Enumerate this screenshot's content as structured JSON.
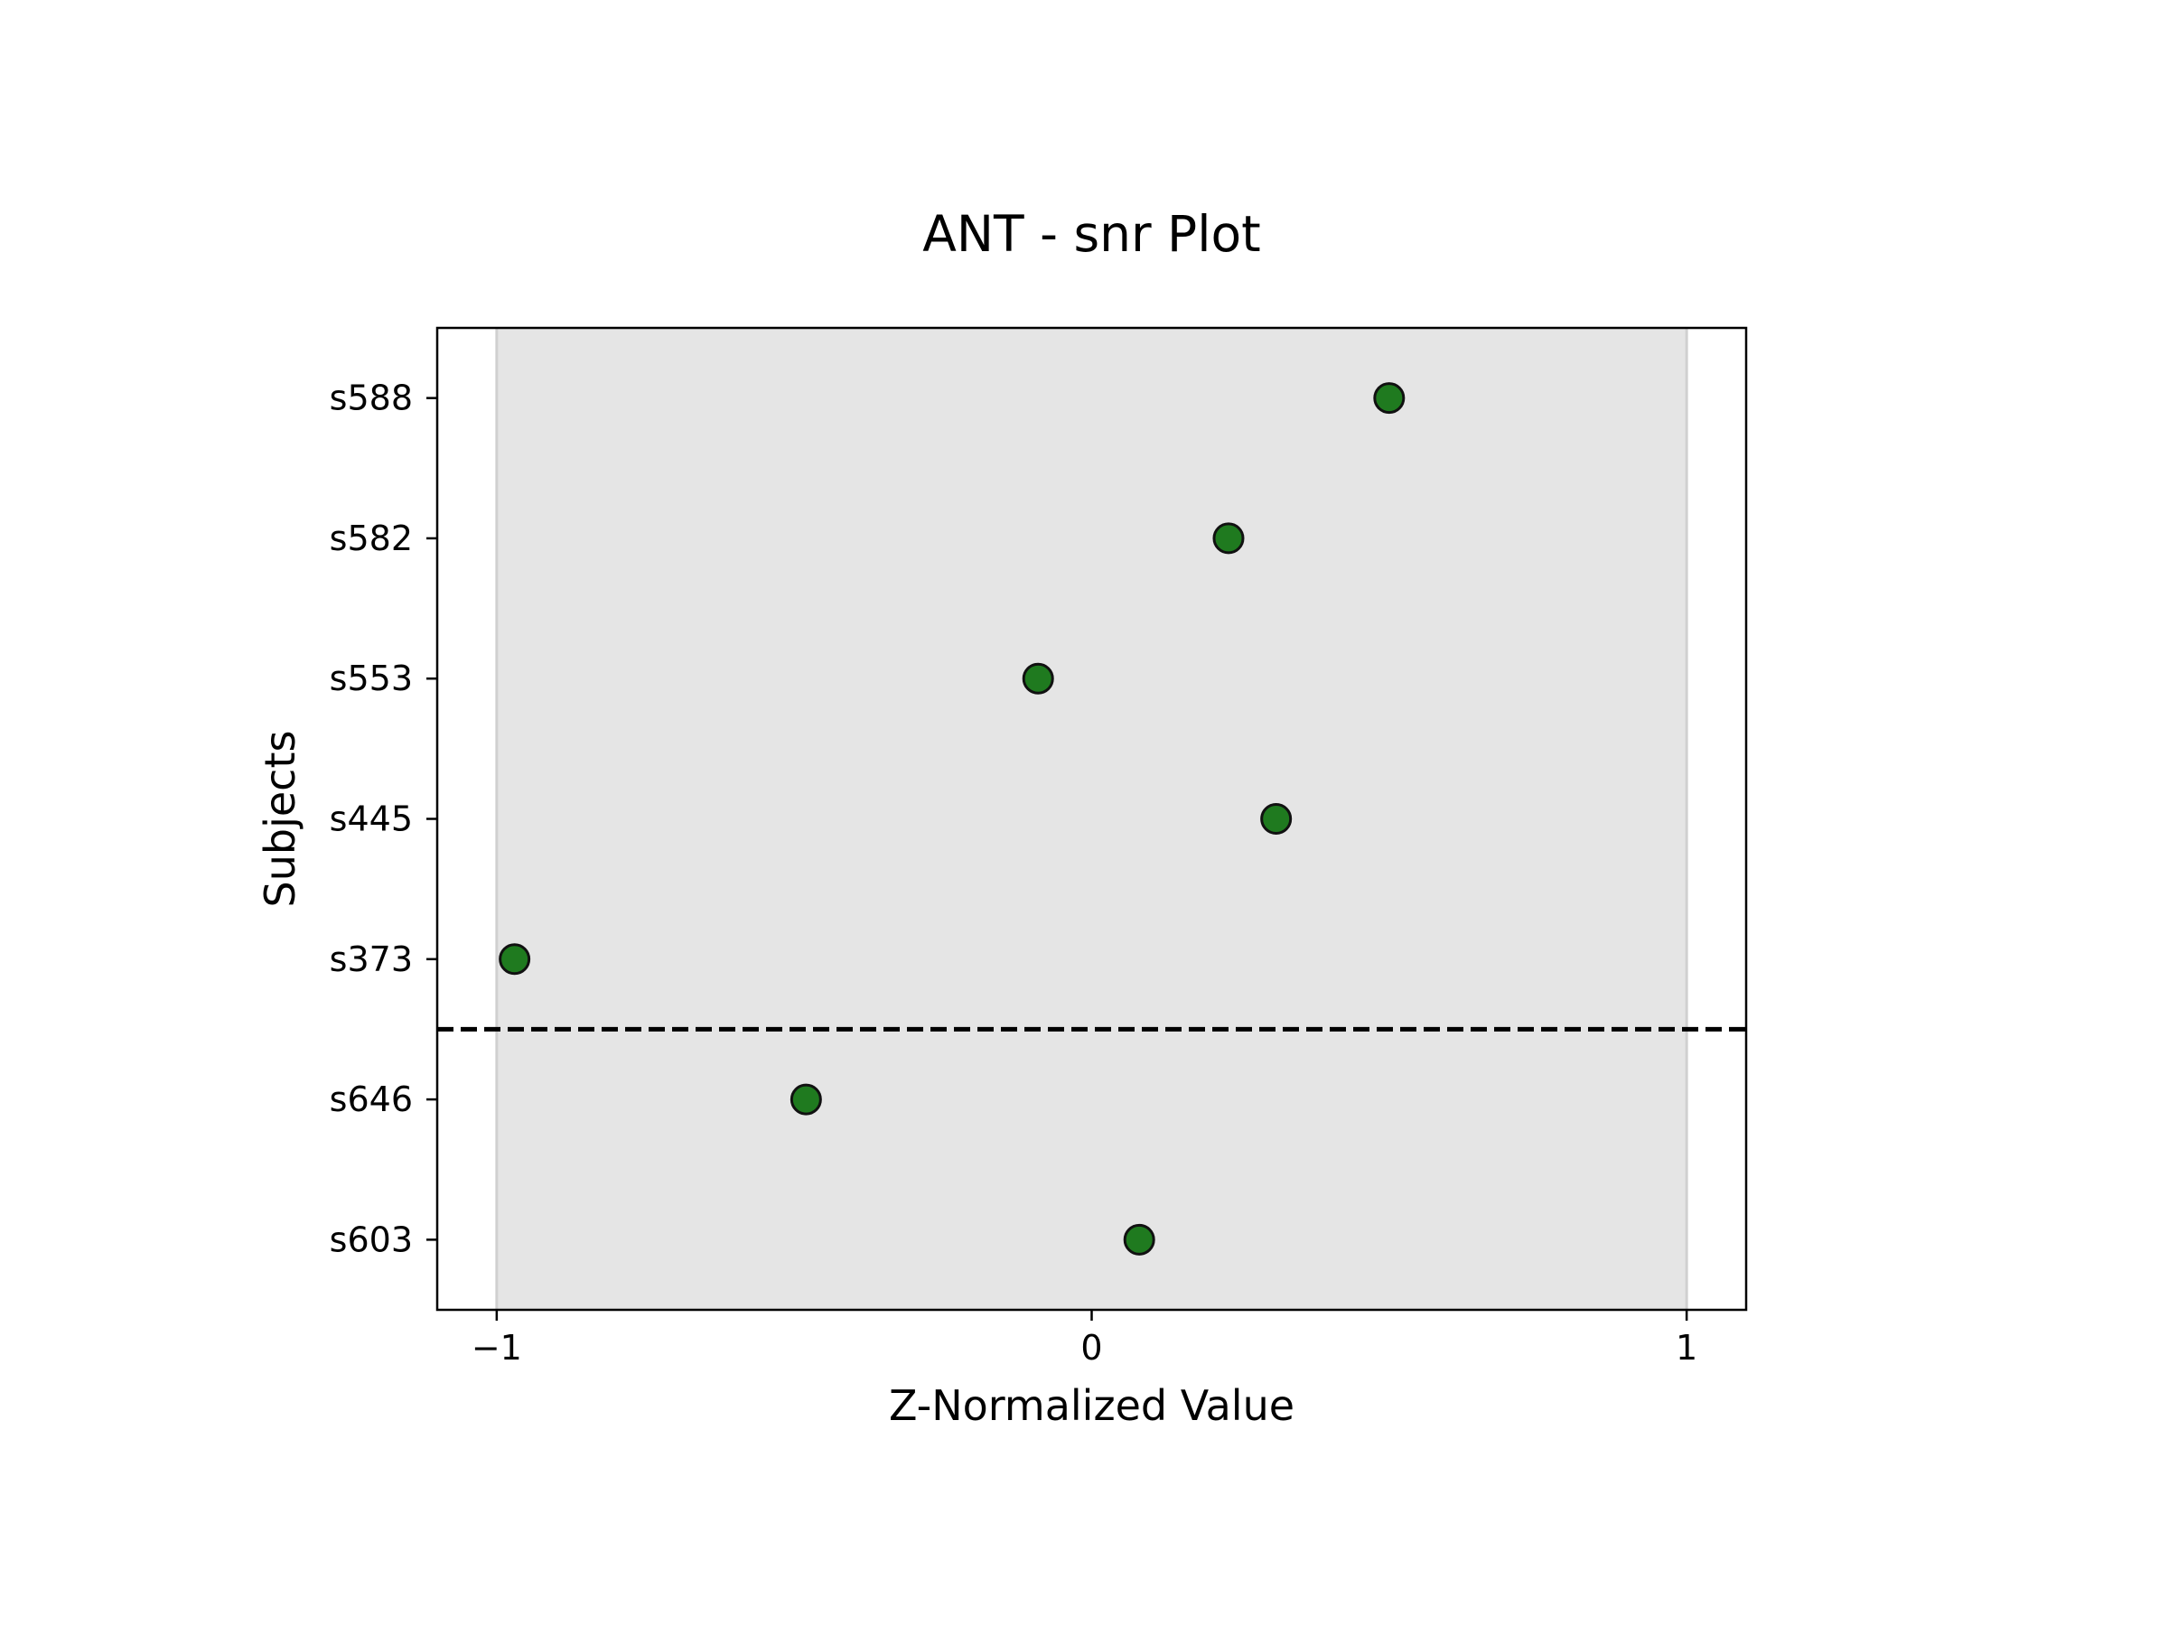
{
  "chart_data": {
    "type": "scatter",
    "title": "ANT - snr Plot",
    "xlabel": "Z-Normalized Value",
    "ylabel": "Subjects",
    "xlim": [
      -1.1,
      1.1
    ],
    "x_ticks": [
      -1,
      0,
      1
    ],
    "x_tick_labels": [
      "−1",
      "0",
      "1"
    ],
    "shaded_range": [
      -1,
      1
    ],
    "categories": [
      "s588",
      "s582",
      "s553",
      "s445",
      "s373",
      "s646",
      "s603"
    ],
    "points": [
      {
        "subject": "s588",
        "x": 0.5
      },
      {
        "subject": "s582",
        "x": 0.23
      },
      {
        "subject": "s553",
        "x": -0.09
      },
      {
        "subject": "s445",
        "x": 0.31
      },
      {
        "subject": "s373",
        "x": -0.97
      },
      {
        "subject": "s646",
        "x": -0.48
      },
      {
        "subject": "s603",
        "x": 0.08
      }
    ],
    "divider_after": "s373",
    "grid": false,
    "colors": {
      "point_fill": "#1f7a1f",
      "point_edge": "#111111",
      "shade": "#e5e5e5",
      "shade_edge": "#d0d0d0",
      "divider": "#000000"
    }
  }
}
